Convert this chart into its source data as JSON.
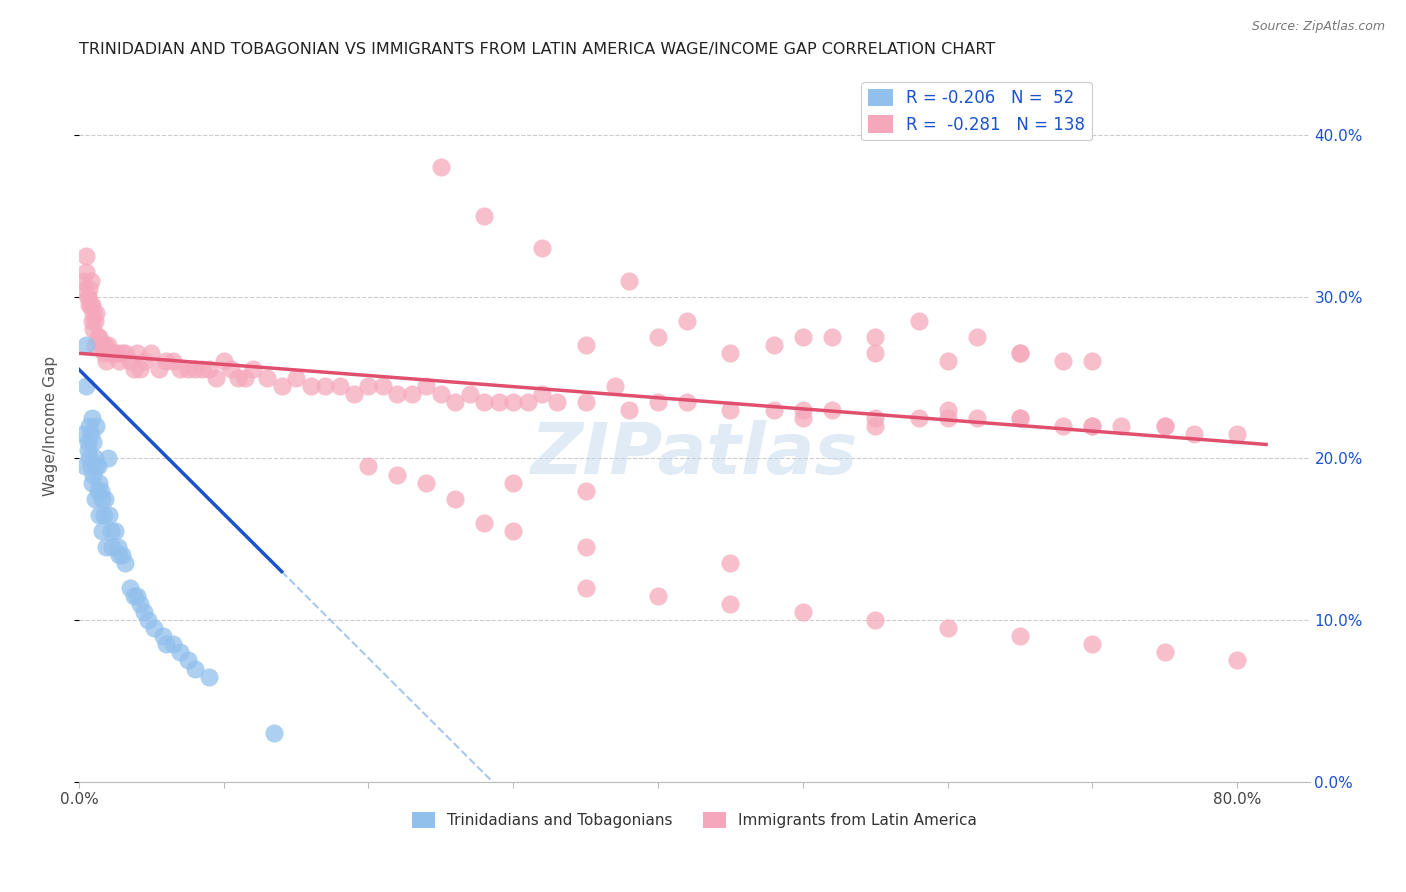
{
  "title": "TRINIDADIAN AND TOBAGONIAN VS IMMIGRANTS FROM LATIN AMERICA WAGE/INCOME GAP CORRELATION CHART",
  "source": "Source: ZipAtlas.com",
  "ylabel": "Wage/Income Gap",
  "right_ytick_labels": [
    "0.0%",
    "10.0%",
    "20.0%",
    "30.0%",
    "40.0%"
  ],
  "right_ytick_values": [
    0.0,
    0.1,
    0.2,
    0.3,
    0.4
  ],
  "xtick_labels": [
    "0.0%",
    "",
    "",
    "",
    "",
    "",
    "",
    "",
    "80.0%"
  ],
  "xtick_values": [
    0.0,
    0.1,
    0.2,
    0.3,
    0.4,
    0.5,
    0.6,
    0.7,
    0.8
  ],
  "xlim": [
    0.0,
    0.85
  ],
  "ylim": [
    0.0,
    0.44
  ],
  "blue_color": "#92C0EC",
  "pink_color": "#F5A8BC",
  "blue_line_color": "#1A52CC",
  "pink_line_color": "#E0506E",
  "dashed_line_color": "#A8C8EC",
  "text_color_blue": "#1A52CC",
  "bg_color": "#FFFFFF",
  "grid_color": "#CCCCCC",
  "legend_entry1": "R = -0.206   N =  52",
  "legend_entry2": "R =  -0.281   N = 138",
  "bottom_legend1": "Trinidadians and Tobagonians",
  "bottom_legend2": "Immigrants from Latin America",
  "blue_scatter_x": [
    0.003,
    0.004,
    0.005,
    0.005,
    0.006,
    0.006,
    0.007,
    0.007,
    0.008,
    0.008,
    0.009,
    0.009,
    0.01,
    0.01,
    0.011,
    0.011,
    0.012,
    0.012,
    0.013,
    0.013,
    0.014,
    0.014,
    0.015,
    0.016,
    0.016,
    0.017,
    0.018,
    0.019,
    0.02,
    0.021,
    0.022,
    0.023,
    0.025,
    0.027,
    0.028,
    0.03,
    0.032,
    0.035,
    0.038,
    0.04,
    0.042,
    0.045,
    0.048,
    0.052,
    0.058,
    0.06,
    0.065,
    0.07,
    0.075,
    0.08,
    0.09,
    0.135
  ],
  "blue_scatter_y": [
    0.215,
    0.195,
    0.27,
    0.245,
    0.205,
    0.21,
    0.22,
    0.2,
    0.215,
    0.195,
    0.225,
    0.185,
    0.21,
    0.19,
    0.2,
    0.175,
    0.22,
    0.195,
    0.195,
    0.18,
    0.185,
    0.165,
    0.18,
    0.175,
    0.155,
    0.165,
    0.175,
    0.145,
    0.2,
    0.165,
    0.155,
    0.145,
    0.155,
    0.145,
    0.14,
    0.14,
    0.135,
    0.12,
    0.115,
    0.115,
    0.11,
    0.105,
    0.1,
    0.095,
    0.09,
    0.085,
    0.085,
    0.08,
    0.075,
    0.07,
    0.065,
    0.03
  ],
  "pink_scatter_x": [
    0.003,
    0.004,
    0.005,
    0.005,
    0.006,
    0.006,
    0.007,
    0.007,
    0.008,
    0.008,
    0.009,
    0.009,
    0.01,
    0.01,
    0.011,
    0.011,
    0.012,
    0.013,
    0.014,
    0.015,
    0.016,
    0.017,
    0.018,
    0.019,
    0.02,
    0.022,
    0.024,
    0.026,
    0.028,
    0.03,
    0.032,
    0.035,
    0.038,
    0.04,
    0.042,
    0.045,
    0.05,
    0.055,
    0.06,
    0.065,
    0.07,
    0.075,
    0.08,
    0.085,
    0.09,
    0.095,
    0.1,
    0.105,
    0.11,
    0.115,
    0.12,
    0.13,
    0.14,
    0.15,
    0.16,
    0.17,
    0.18,
    0.19,
    0.2,
    0.21,
    0.22,
    0.23,
    0.24,
    0.25,
    0.26,
    0.27,
    0.28,
    0.29,
    0.3,
    0.31,
    0.32,
    0.33,
    0.35,
    0.37,
    0.38,
    0.4,
    0.42,
    0.45,
    0.48,
    0.5,
    0.52,
    0.55,
    0.58,
    0.6,
    0.62,
    0.65,
    0.68,
    0.7,
    0.72,
    0.75,
    0.77,
    0.8,
    0.25,
    0.28,
    0.32,
    0.38,
    0.42,
    0.48,
    0.52,
    0.55,
    0.58,
    0.62,
    0.65,
    0.68,
    0.35,
    0.4,
    0.45,
    0.5,
    0.55,
    0.6,
    0.65,
    0.7,
    0.5,
    0.55,
    0.6,
    0.65,
    0.7,
    0.75,
    0.3,
    0.35,
    0.2,
    0.22,
    0.24,
    0.26,
    0.28,
    0.35,
    0.4,
    0.45,
    0.5,
    0.55,
    0.6,
    0.65,
    0.7,
    0.75,
    0.8,
    0.3,
    0.35,
    0.45
  ],
  "pink_scatter_y": [
    0.31,
    0.305,
    0.325,
    0.315,
    0.3,
    0.3,
    0.305,
    0.295,
    0.31,
    0.295,
    0.295,
    0.285,
    0.29,
    0.28,
    0.285,
    0.27,
    0.29,
    0.275,
    0.275,
    0.27,
    0.27,
    0.265,
    0.27,
    0.26,
    0.27,
    0.265,
    0.265,
    0.265,
    0.26,
    0.265,
    0.265,
    0.26,
    0.255,
    0.265,
    0.255,
    0.26,
    0.265,
    0.255,
    0.26,
    0.26,
    0.255,
    0.255,
    0.255,
    0.255,
    0.255,
    0.25,
    0.26,
    0.255,
    0.25,
    0.25,
    0.255,
    0.25,
    0.245,
    0.25,
    0.245,
    0.245,
    0.245,
    0.24,
    0.245,
    0.245,
    0.24,
    0.24,
    0.245,
    0.24,
    0.235,
    0.24,
    0.235,
    0.235,
    0.235,
    0.235,
    0.24,
    0.235,
    0.235,
    0.245,
    0.23,
    0.235,
    0.235,
    0.23,
    0.23,
    0.23,
    0.23,
    0.225,
    0.225,
    0.23,
    0.225,
    0.225,
    0.22,
    0.22,
    0.22,
    0.22,
    0.215,
    0.215,
    0.38,
    0.35,
    0.33,
    0.31,
    0.285,
    0.27,
    0.275,
    0.275,
    0.285,
    0.275,
    0.265,
    0.26,
    0.27,
    0.275,
    0.265,
    0.275,
    0.265,
    0.26,
    0.265,
    0.26,
    0.225,
    0.22,
    0.225,
    0.225,
    0.22,
    0.22,
    0.185,
    0.18,
    0.195,
    0.19,
    0.185,
    0.175,
    0.16,
    0.12,
    0.115,
    0.11,
    0.105,
    0.1,
    0.095,
    0.09,
    0.085,
    0.08,
    0.075,
    0.155,
    0.145,
    0.135
  ]
}
